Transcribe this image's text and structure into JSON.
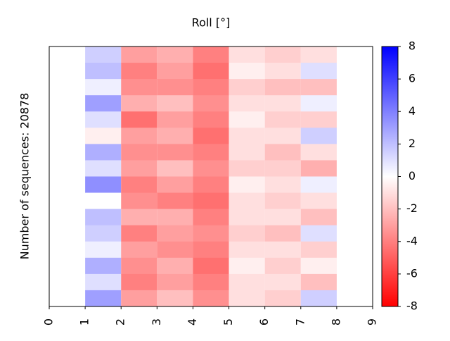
{
  "chart_data": {
    "type": "heatmap",
    "title": "Roll [°]",
    "ylabel": "Number of sequences: 20878",
    "xlim": [
      0,
      9
    ],
    "xticks": [
      0,
      1,
      2,
      3,
      4,
      5,
      6,
      7,
      8,
      9
    ],
    "column_edges": [
      1,
      2,
      3,
      4,
      5,
      6,
      7,
      8
    ],
    "values": [
      [
        1.5,
        -3,
        -2.5,
        -4,
        -1,
        -1.5,
        -1
      ],
      [
        2,
        -4,
        -3,
        -4.5,
        -0.5,
        -1,
        1
      ],
      [
        0.5,
        -3.5,
        -3.5,
        -4,
        -1.5,
        -2,
        -2
      ],
      [
        3,
        -2.5,
        -2,
        -3.5,
        -1,
        -1,
        0.5
      ],
      [
        1,
        -4.5,
        -3,
        -4,
        -0.5,
        -1.5,
        -1.5
      ],
      [
        -0.5,
        -3,
        -2.5,
        -4.5,
        -1,
        -1,
        1.5
      ],
      [
        2.5,
        -3.5,
        -3.5,
        -4,
        -1,
        -2,
        -1
      ],
      [
        1,
        -3,
        -2,
        -3.5,
        -1.5,
        -1.5,
        -2.5
      ],
      [
        3.5,
        -4,
        -3,
        -4,
        -0.5,
        -1,
        0.5
      ],
      [
        0,
        -3.5,
        -4,
        -4.5,
        -1,
        -1.5,
        -1
      ],
      [
        2,
        -2.5,
        -2.5,
        -4,
        -1,
        -1,
        -2
      ],
      [
        1.5,
        -4,
        -3,
        -3.5,
        -1.5,
        -2,
        1
      ],
      [
        0.5,
        -3,
        -3.5,
        -4,
        -1,
        -1,
        -1.5
      ],
      [
        2.5,
        -3.5,
        -2.5,
        -4.5,
        -0.5,
        -1.5,
        -0.5
      ],
      [
        1,
        -4,
        -3,
        -4,
        -1,
        -1,
        -2
      ],
      [
        3,
        -3,
        -2,
        -3.5,
        -1,
        -1.5,
        1.5
      ]
    ],
    "clim": [
      -8,
      8
    ],
    "cticks": [
      -8,
      -6,
      -4,
      -2,
      0,
      2,
      4,
      6,
      8
    ],
    "colormap": "bwr"
  }
}
